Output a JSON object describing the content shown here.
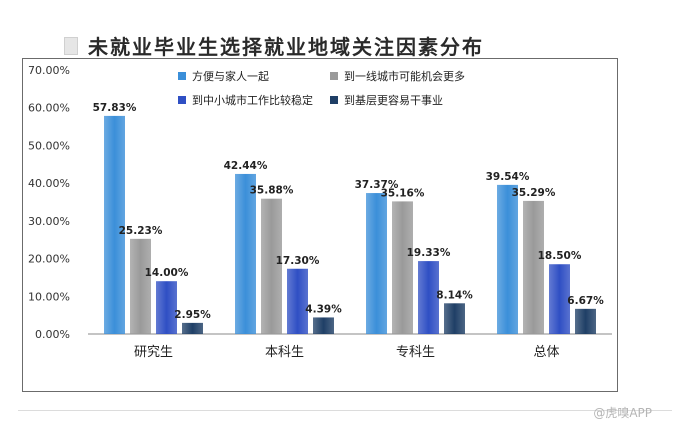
{
  "title": "未就业毕业生选择就业地域关注因素分布",
  "watermark": "@虎嗅APP",
  "chart_data": {
    "type": "bar",
    "title": "未就业毕业生选择就业地域关注因素分布",
    "categories": [
      "研究生",
      "本科生",
      "专科生",
      "总体"
    ],
    "series": [
      {
        "name": "方便与家人一起",
        "color": "#3b8fd9",
        "values": [
          57.83,
          42.44,
          37.37,
          39.54
        ],
        "labels": [
          "57.83%",
          "42.44%",
          "37.37%",
          "39.54%"
        ]
      },
      {
        "name": "到一线城市可能机会更多",
        "color": "#9a9a9a",
        "values": [
          25.23,
          35.88,
          35.16,
          35.29
        ],
        "labels": [
          "25.23%",
          "35.88%",
          "35.16%",
          "35.29%"
        ]
      },
      {
        "name": "到中小城市工作比较稳定",
        "color": "#2f4fc4",
        "values": [
          14.0,
          17.3,
          19.33,
          18.5
        ],
        "labels": [
          "14.00%",
          "17.30%",
          "19.33%",
          "18.50%"
        ]
      },
      {
        "name": "到基层更容易干事业",
        "color": "#1f3f66",
        "values": [
          2.95,
          4.39,
          8.14,
          6.67
        ],
        "labels": [
          "2.95%",
          "4.39%",
          "8.14%",
          "6.67%"
        ]
      }
    ],
    "ylim": [
      0,
      70
    ],
    "yticks": [
      "0.00%",
      "10.00%",
      "20.00%",
      "30.00%",
      "40.00%",
      "50.00%",
      "60.00%",
      "70.00%"
    ],
    "grid": false,
    "legend_position": "top-right"
  }
}
